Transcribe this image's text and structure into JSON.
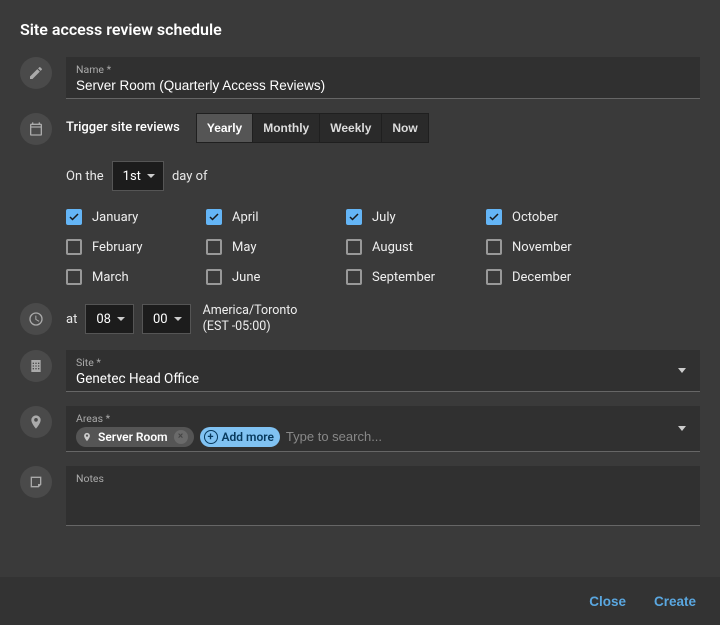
{
  "title": "Site access review schedule",
  "name_field": {
    "label": "Name *",
    "value": "Server Room (Quarterly Access Reviews)"
  },
  "trigger": {
    "label": "Trigger site reviews",
    "options": [
      "Yearly",
      "Monthly",
      "Weekly",
      "Now"
    ],
    "active": "Yearly"
  },
  "day": {
    "prefix": "On the",
    "value": "1st",
    "suffix": "day of"
  },
  "months": [
    {
      "label": "January",
      "checked": true
    },
    {
      "label": "April",
      "checked": true
    },
    {
      "label": "July",
      "checked": true
    },
    {
      "label": "October",
      "checked": true
    },
    {
      "label": "February",
      "checked": false
    },
    {
      "label": "May",
      "checked": false
    },
    {
      "label": "August",
      "checked": false
    },
    {
      "label": "November",
      "checked": false
    },
    {
      "label": "March",
      "checked": false
    },
    {
      "label": "June",
      "checked": false
    },
    {
      "label": "September",
      "checked": false
    },
    {
      "label": "December",
      "checked": false
    }
  ],
  "time": {
    "at": "at",
    "hour": "08",
    "minute": "00",
    "tz_line1": "America/Toronto",
    "tz_line2": "(EST -05:00)"
  },
  "site": {
    "label": "Site *",
    "value": "Genetec Head Office"
  },
  "areas": {
    "label": "Areas *",
    "chips": [
      "Server Room"
    ],
    "add_more": "Add more",
    "placeholder": "Type to search..."
  },
  "notes": {
    "label": "Notes",
    "value": ""
  },
  "footer": {
    "close": "Close",
    "create": "Create"
  },
  "colors": {
    "accent": "#64b5f6",
    "chip_add_bg": "#80c2f2",
    "link": "#5aa7e0",
    "bg": "#3a3a3a",
    "field_bg": "#303030"
  }
}
